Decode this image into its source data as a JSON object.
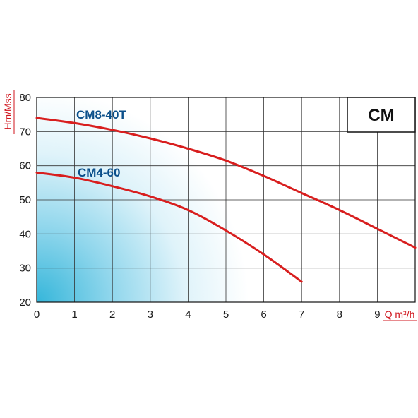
{
  "chart_data": {
    "type": "line",
    "title": "",
    "model_label": "CM",
    "xlabel": "Q m³/h",
    "ylabel": "Hm/Mss",
    "xlim": [
      0,
      10
    ],
    "ylim": [
      20,
      80
    ],
    "x_ticks": [
      0,
      1,
      2,
      3,
      4,
      5,
      6,
      7,
      8,
      9
    ],
    "y_ticks": [
      20,
      30,
      40,
      50,
      60,
      70,
      80
    ],
    "grid": true,
    "background": "radial-gradient-blue-bottom-left",
    "series": [
      {
        "name": "CM8-40T",
        "color": "#d81e1e",
        "x": [
          0,
          1,
          2,
          3,
          4,
          5,
          6,
          7,
          8,
          9,
          10
        ],
        "y": [
          74,
          72.5,
          70.5,
          68,
          65,
          61.5,
          57,
          52,
          47,
          41.5,
          36
        ]
      },
      {
        "name": "CM4-60",
        "color": "#d81e1e",
        "x": [
          0,
          1,
          2,
          3,
          4,
          5,
          6,
          7
        ],
        "y": [
          58,
          56.5,
          54,
          51,
          47,
          41,
          34,
          26
        ]
      }
    ]
  }
}
